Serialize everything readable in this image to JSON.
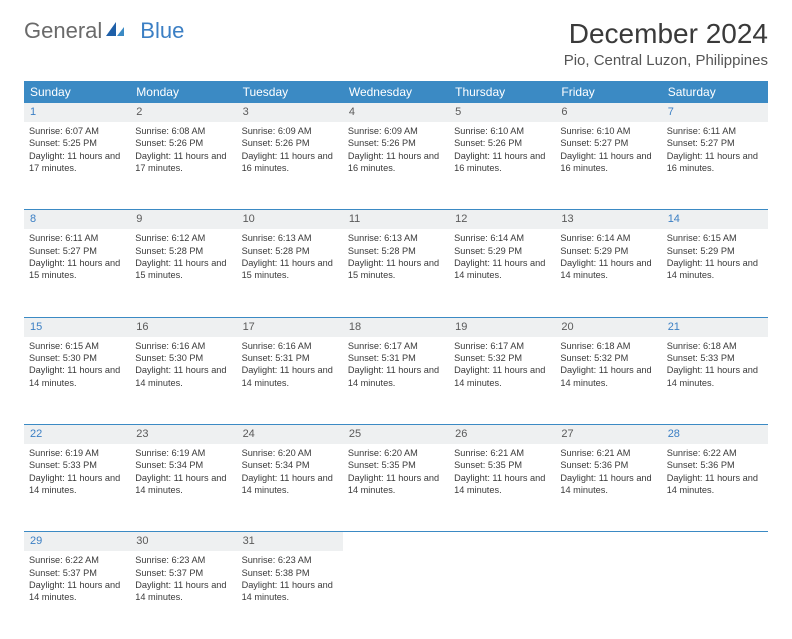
{
  "brand": {
    "text1": "General",
    "text2": "Blue"
  },
  "title": "December 2024",
  "location": "Pio, Central Luzon, Philippines",
  "colors": {
    "header_bg": "#3b8ac4",
    "header_text": "#ffffff",
    "daynum_bg": "#eef0f1",
    "border": "#3b8ac4",
    "weekend_num": "#3b7fc4",
    "text": "#3a3a3a",
    "brand_gray": "#6a6a6a",
    "brand_blue": "#3b7fc4"
  },
  "day_headers": [
    "Sunday",
    "Monday",
    "Tuesday",
    "Wednesday",
    "Thursday",
    "Friday",
    "Saturday"
  ],
  "weeks": [
    [
      {
        "n": "1",
        "sr": "6:07 AM",
        "ss": "5:25 PM",
        "dl": "11 hours and 17 minutes."
      },
      {
        "n": "2",
        "sr": "6:08 AM",
        "ss": "5:26 PM",
        "dl": "11 hours and 17 minutes."
      },
      {
        "n": "3",
        "sr": "6:09 AM",
        "ss": "5:26 PM",
        "dl": "11 hours and 16 minutes."
      },
      {
        "n": "4",
        "sr": "6:09 AM",
        "ss": "5:26 PM",
        "dl": "11 hours and 16 minutes."
      },
      {
        "n": "5",
        "sr": "6:10 AM",
        "ss": "5:26 PM",
        "dl": "11 hours and 16 minutes."
      },
      {
        "n": "6",
        "sr": "6:10 AM",
        "ss": "5:27 PM",
        "dl": "11 hours and 16 minutes."
      },
      {
        "n": "7",
        "sr": "6:11 AM",
        "ss": "5:27 PM",
        "dl": "11 hours and 16 minutes."
      }
    ],
    [
      {
        "n": "8",
        "sr": "6:11 AM",
        "ss": "5:27 PM",
        "dl": "11 hours and 15 minutes."
      },
      {
        "n": "9",
        "sr": "6:12 AM",
        "ss": "5:28 PM",
        "dl": "11 hours and 15 minutes."
      },
      {
        "n": "10",
        "sr": "6:13 AM",
        "ss": "5:28 PM",
        "dl": "11 hours and 15 minutes."
      },
      {
        "n": "11",
        "sr": "6:13 AM",
        "ss": "5:28 PM",
        "dl": "11 hours and 15 minutes."
      },
      {
        "n": "12",
        "sr": "6:14 AM",
        "ss": "5:29 PM",
        "dl": "11 hours and 14 minutes."
      },
      {
        "n": "13",
        "sr": "6:14 AM",
        "ss": "5:29 PM",
        "dl": "11 hours and 14 minutes."
      },
      {
        "n": "14",
        "sr": "6:15 AM",
        "ss": "5:29 PM",
        "dl": "11 hours and 14 minutes."
      }
    ],
    [
      {
        "n": "15",
        "sr": "6:15 AM",
        "ss": "5:30 PM",
        "dl": "11 hours and 14 minutes."
      },
      {
        "n": "16",
        "sr": "6:16 AM",
        "ss": "5:30 PM",
        "dl": "11 hours and 14 minutes."
      },
      {
        "n": "17",
        "sr": "6:16 AM",
        "ss": "5:31 PM",
        "dl": "11 hours and 14 minutes."
      },
      {
        "n": "18",
        "sr": "6:17 AM",
        "ss": "5:31 PM",
        "dl": "11 hours and 14 minutes."
      },
      {
        "n": "19",
        "sr": "6:17 AM",
        "ss": "5:32 PM",
        "dl": "11 hours and 14 minutes."
      },
      {
        "n": "20",
        "sr": "6:18 AM",
        "ss": "5:32 PM",
        "dl": "11 hours and 14 minutes."
      },
      {
        "n": "21",
        "sr": "6:18 AM",
        "ss": "5:33 PM",
        "dl": "11 hours and 14 minutes."
      }
    ],
    [
      {
        "n": "22",
        "sr": "6:19 AM",
        "ss": "5:33 PM",
        "dl": "11 hours and 14 minutes."
      },
      {
        "n": "23",
        "sr": "6:19 AM",
        "ss": "5:34 PM",
        "dl": "11 hours and 14 minutes."
      },
      {
        "n": "24",
        "sr": "6:20 AM",
        "ss": "5:34 PM",
        "dl": "11 hours and 14 minutes."
      },
      {
        "n": "25",
        "sr": "6:20 AM",
        "ss": "5:35 PM",
        "dl": "11 hours and 14 minutes."
      },
      {
        "n": "26",
        "sr": "6:21 AM",
        "ss": "5:35 PM",
        "dl": "11 hours and 14 minutes."
      },
      {
        "n": "27",
        "sr": "6:21 AM",
        "ss": "5:36 PM",
        "dl": "11 hours and 14 minutes."
      },
      {
        "n": "28",
        "sr": "6:22 AM",
        "ss": "5:36 PM",
        "dl": "11 hours and 14 minutes."
      }
    ],
    [
      {
        "n": "29",
        "sr": "6:22 AM",
        "ss": "5:37 PM",
        "dl": "11 hours and 14 minutes."
      },
      {
        "n": "30",
        "sr": "6:23 AM",
        "ss": "5:37 PM",
        "dl": "11 hours and 14 minutes."
      },
      {
        "n": "31",
        "sr": "6:23 AM",
        "ss": "5:38 PM",
        "dl": "11 hours and 14 minutes."
      },
      null,
      null,
      null,
      null
    ]
  ],
  "labels": {
    "sunrise": "Sunrise:",
    "sunset": "Sunset:",
    "daylight": "Daylight:"
  }
}
